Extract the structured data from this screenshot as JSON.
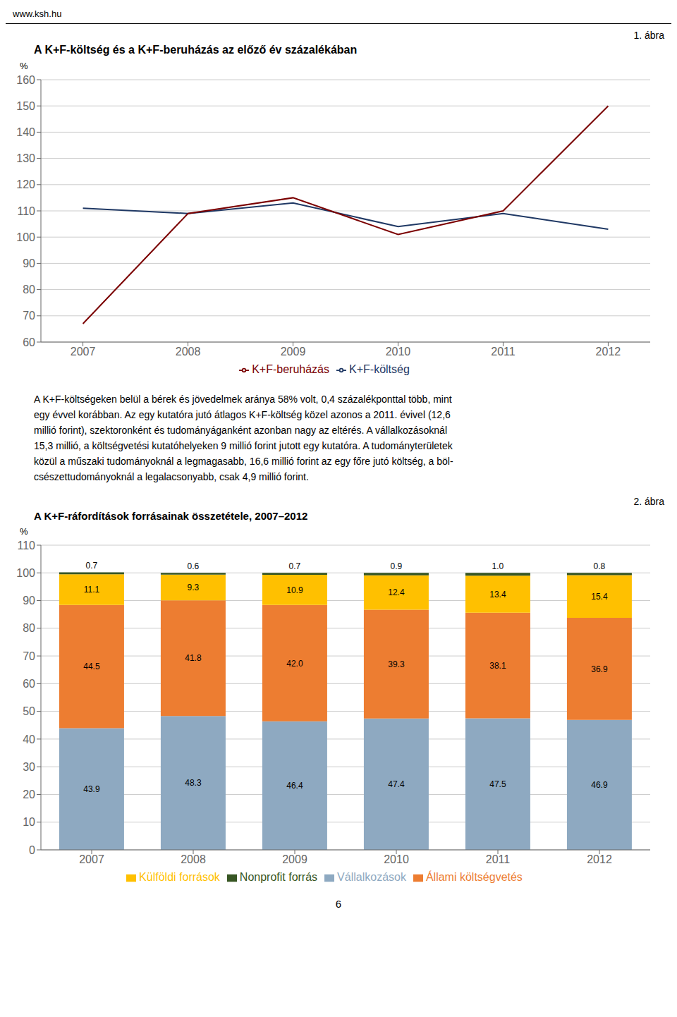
{
  "chart_data": [
    {
      "type": "line",
      "title": "A K+F-költség és a K+F-beruházás az előző év százalékában",
      "y_label": "%",
      "x": [
        2007,
        2008,
        2009,
        2010,
        2011,
        2012
      ],
      "series": [
        {
          "name": "K+F-költség",
          "color": "#1F3864",
          "values": [
            111,
            109,
            113,
            104,
            109,
            103
          ]
        },
        {
          "name": "K+F-beruházás",
          "color": "#7B0000",
          "values": [
            67,
            109,
            115,
            101,
            110,
            150
          ]
        }
      ],
      "xlim": [
        2006.6,
        2012.4
      ],
      "xticks": [
        2007,
        2008,
        2009,
        2010,
        2011,
        2012
      ],
      "ylim": [
        60,
        160
      ],
      "yticks": [
        60,
        70,
        80,
        90,
        100,
        110,
        120,
        130,
        140,
        150,
        160
      ],
      "grid": true,
      "legend": "bottom",
      "annotations": [
        "www.ksh.hu",
        "1. ábra"
      ]
    },
    {
      "type": "bar",
      "stacked": true,
      "title": "A K+F-ráfordítások forrásainak összetétele, 2007–2012",
      "y_label": "%",
      "categories": [
        "2007",
        "2008",
        "2009",
        "2010",
        "2011",
        "2012"
      ],
      "series": [
        {
          "name": "Vállalkozások",
          "color": "#8EA9C1",
          "values": [
            43.9,
            48.3,
            46.4,
            47.4,
            47.5,
            46.9
          ]
        },
        {
          "name": "Állami költségvetés",
          "color": "#ED7D31",
          "values": [
            44.5,
            41.8,
            42.0,
            39.3,
            38.1,
            36.9
          ],
          "value_labels": [
            "44.5",
            "41.8",
            "42.0",
            "39.3",
            "38.1",
            "36.9"
          ]
        },
        {
          "name": "Külföldi források",
          "color": "#FFC000",
          "values": [
            11.1,
            9.3,
            10.9,
            12.4,
            13.4,
            15.4
          ]
        },
        {
          "name": "Nonprofit forrás",
          "color": "#375623",
          "values": [
            0.7,
            0.6,
            0.7,
            0.9,
            1.0,
            0.8
          ],
          "value_labels": [
            "0.7",
            "0.6",
            "0.7",
            "0.9",
            "1.0",
            "0.8"
          ]
        }
      ],
      "ylim": [
        0,
        110
      ],
      "yticks": [
        0,
        10,
        20,
        30,
        40,
        50,
        60,
        70,
        80,
        90,
        100,
        110
      ],
      "grid": true,
      "legend": "bottom",
      "data_labels": true,
      "annotations": [
        "A K+F-költségeken belül a bérek és jövedelmek aránya 58% volt, 0,4 százalékponttal több, mint",
        "egy évvel korábban. Az egy kutatóra jutó átlagos K+F-költség közel azonos a 2011. évivel (12,6",
        "millió forint), szektoronként és tudományáganként azonban nagy az eltérés. A vállalkozásoknál",
        "15,3 millió, a költségvetési kutatóhelyeken 9 millió forint jutott egy kutatóra. A tudományterületek",
        "közül a műszaki tudományoknál a legmagasabb, 16,6 millió forint az egy főre jutó költség, a böl-",
        "csészettudományoknál a legalacsonyabb, csak 4,9 millió forint.",
        "2. ábra",
        "6"
      ]
    }
  ]
}
